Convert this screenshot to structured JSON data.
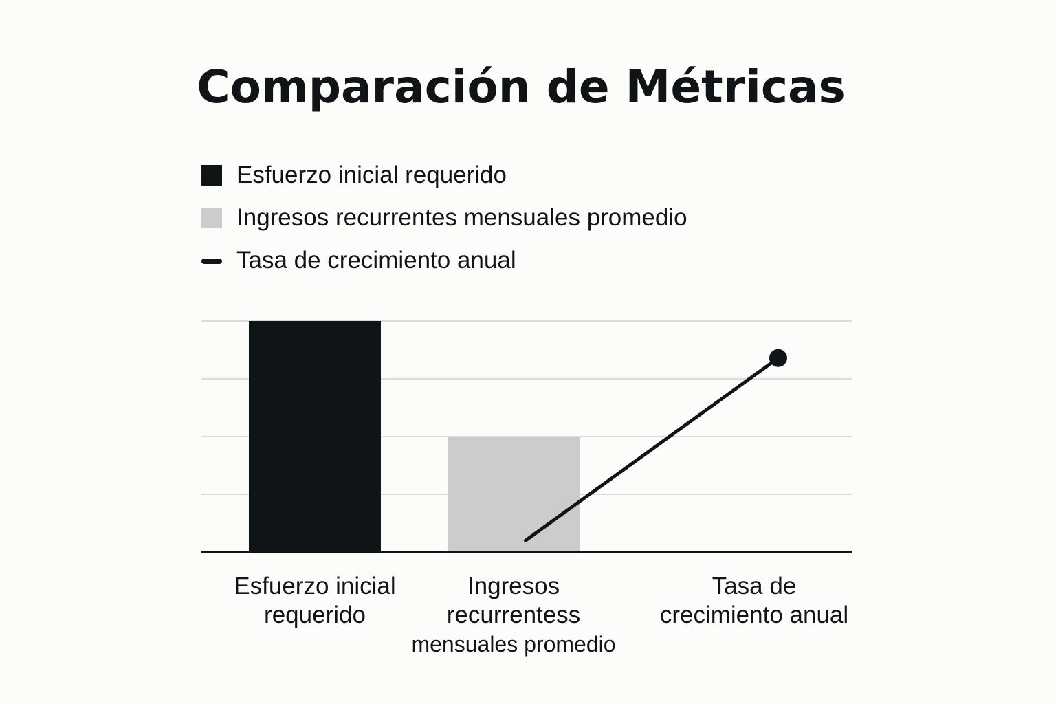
{
  "chart_data": {
    "type": "bar",
    "title": "Comparación de Métricas",
    "categories": [
      "Esfuerzo inicial requerido",
      "Ingresos recurrentess mensuales promedio",
      "Tasa de crecimiento anual"
    ],
    "legend": {
      "placement": "top-left",
      "items": [
        {
          "label": "Esfuerzo inicial requerido",
          "kind": "bar",
          "color": "#111417"
        },
        {
          "label": "Ingresos recurrentes mensuales promedio",
          "kind": "bar",
          "color": "#cccccc"
        },
        {
          "label": "Tasa de crecimiento anual",
          "kind": "line",
          "color": "#111417"
        }
      ]
    },
    "series": [
      {
        "kind": "bar",
        "category_index": 0,
        "value": 100,
        "color": "#111417"
      },
      {
        "kind": "bar",
        "category_index": 1,
        "value": 50,
        "color": "#cccccc"
      },
      {
        "kind": "line",
        "color": "#111417",
        "points": [
          {
            "x": 1.05,
            "y": 5
          },
          {
            "x": 2.1,
            "y": 84
          }
        ]
      }
    ],
    "ylim": [
      0,
      100
    ],
    "grid": true,
    "gridlines": [
      25,
      50,
      75,
      100
    ],
    "xtick_lines": [
      [
        "Esfuerzo inicial",
        "requerido"
      ],
      [
        "Ingresos",
        "recurrentess",
        "mensuales promedio"
      ],
      [
        "Tasa de",
        "crecimiento anual"
      ]
    ]
  }
}
